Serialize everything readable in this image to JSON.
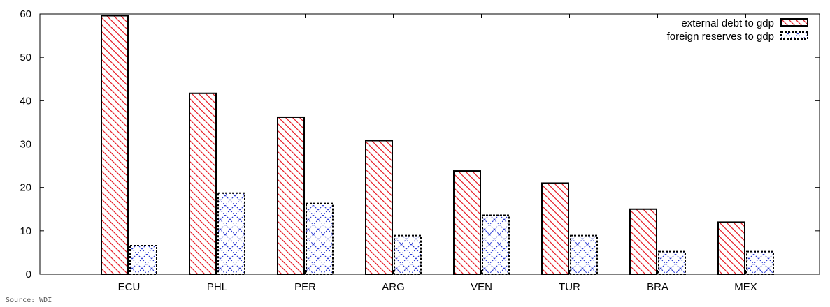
{
  "chart_data": {
    "type": "bar",
    "categories": [
      "ECU",
      "PHL",
      "PER",
      "ARG",
      "VEN",
      "TUR",
      "BRA",
      "MEX"
    ],
    "series": [
      {
        "name": "external debt to gdp",
        "values": [
          59.6,
          41.7,
          36.2,
          30.8,
          23.8,
          21.0,
          15.0,
          12.0
        ],
        "color": "#e8202a",
        "pattern": "diagonal-hatch"
      },
      {
        "name": "foreign reserves to gdp",
        "values": [
          6.6,
          18.7,
          16.3,
          8.9,
          13.6,
          8.9,
          5.2,
          5.2
        ],
        "color": "#1a2bd0",
        "pattern": "crosshatch"
      }
    ],
    "ylim": [
      0,
      60
    ],
    "yticks": [
      0,
      10,
      20,
      30,
      40,
      50,
      60
    ],
    "grid": false,
    "legend_position": "top-right",
    "xlabel": "",
    "ylabel": ""
  },
  "source_note": "Source: WDI"
}
